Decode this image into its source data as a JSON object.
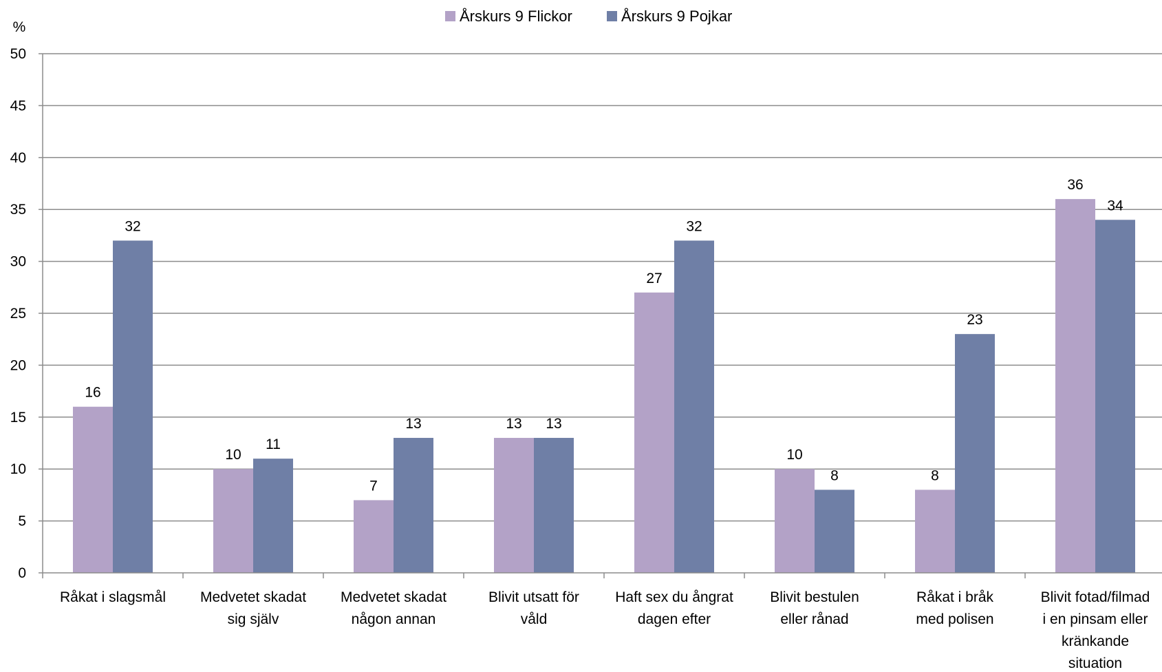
{
  "chart_data": {
    "type": "bar",
    "ylabel": "%",
    "ylim": [
      0,
      50
    ],
    "ytick_step": 5,
    "categories": [
      [
        "Råkat i slagsmål"
      ],
      [
        "Medvetet skadat",
        "sig själv"
      ],
      [
        "Medvetet skadat",
        "någon annan"
      ],
      [
        "Blivit utsatt för",
        "våld"
      ],
      [
        "Haft sex du ångrat",
        "dagen efter"
      ],
      [
        "Blivit bestulen",
        "eller rånad"
      ],
      [
        "Råkat i bråk",
        "med polisen"
      ],
      [
        "Blivit fotad/filmad",
        "i en pinsam eller",
        "kränkande",
        "situation"
      ]
    ],
    "series": [
      {
        "name": "Årskurs 9 Flickor",
        "color": "#b3a2c7",
        "values": [
          16,
          10,
          7,
          13,
          27,
          10,
          8,
          36
        ]
      },
      {
        "name": "Årskurs 9 Pojkar",
        "color": "#6f7fa6",
        "values": [
          32,
          11,
          13,
          13,
          32,
          8,
          23,
          34
        ]
      }
    ],
    "grid": true,
    "legend_position": "top-center",
    "data_labels": true
  }
}
